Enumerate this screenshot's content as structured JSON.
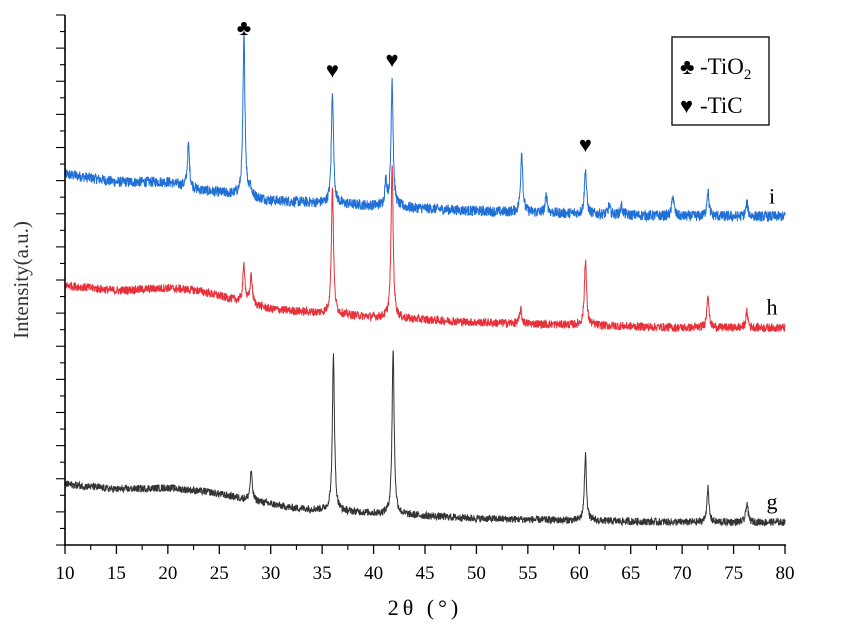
{
  "chart_data": {
    "type": "line",
    "title": "",
    "xlabel": "2θ (°)",
    "ylabel": "Intensity(a.u.)",
    "xlim": [
      10,
      80
    ],
    "ylim": [
      0,
      100
    ],
    "xticks": [
      10,
      15,
      20,
      25,
      30,
      35,
      40,
      45,
      50,
      55,
      60,
      65,
      70,
      75,
      80
    ],
    "grid": false,
    "legend": {
      "placement": "top-right",
      "entries": [
        {
          "symbol": "♣",
          "text": "-TiO",
          "sub": "2"
        },
        {
          "symbol": "♥",
          "text": "-TiC",
          "sub": ""
        }
      ]
    },
    "annotations": [
      {
        "symbol": "♣",
        "x": 27.4,
        "y": 96
      },
      {
        "symbol": "♥",
        "x": 36.0,
        "y": 88
      },
      {
        "symbol": "♥",
        "x": 41.8,
        "y": 90
      },
      {
        "symbol": "♥",
        "x": 60.6,
        "y": 74
      }
    ],
    "series": [
      {
        "name": "i",
        "color": "#1f6fd6",
        "noise": 1.0,
        "baseline": [
          [
            10,
            70
          ],
          [
            15,
            68.5
          ],
          [
            20,
            68.5
          ],
          [
            23,
            67
          ],
          [
            27,
            66
          ],
          [
            30,
            65
          ],
          [
            40,
            64
          ],
          [
            50,
            63
          ],
          [
            60,
            62.5
          ],
          [
            70,
            62
          ],
          [
            80,
            62
          ]
        ],
        "peaks": [
          [
            22.0,
            75.5
          ],
          [
            27.4,
            96
          ],
          [
            28.0,
            67.5
          ],
          [
            36.0,
            86
          ],
          [
            41.2,
            68.5
          ],
          [
            41.8,
            88
          ],
          [
            44.0,
            63.5
          ],
          [
            54.4,
            74.5
          ],
          [
            56.8,
            66
          ],
          [
            60.6,
            71
          ],
          [
            62.9,
            64
          ],
          [
            64.1,
            64
          ],
          [
            69.1,
            66
          ],
          [
            72.5,
            67
          ],
          [
            76.3,
            64.5
          ]
        ]
      },
      {
        "name": "h",
        "color": "#e8303a",
        "noise": 0.8,
        "baseline": [
          [
            10,
            49
          ],
          [
            15,
            48
          ],
          [
            20,
            48.5
          ],
          [
            23,
            48
          ],
          [
            27,
            46
          ],
          [
            30,
            44.5
          ],
          [
            40,
            43
          ],
          [
            50,
            42
          ],
          [
            60,
            41.5
          ],
          [
            70,
            41
          ],
          [
            80,
            41
          ]
        ],
        "peaks": [
          [
            27.4,
            53
          ],
          [
            28.1,
            51
          ],
          [
            36.0,
            68
          ],
          [
            41.8,
            72
          ],
          [
            54.3,
            44.5
          ],
          [
            60.6,
            54
          ],
          [
            72.5,
            47.5
          ],
          [
            76.3,
            44
          ]
        ]
      },
      {
        "name": "g",
        "color": "#333333",
        "noise": 0.7,
        "baseline": [
          [
            10,
            11.5
          ],
          [
            15,
            10.5
          ],
          [
            20,
            10.8
          ],
          [
            24,
            10
          ],
          [
            28,
            8.5
          ],
          [
            32,
            7
          ],
          [
            40,
            6
          ],
          [
            50,
            5
          ],
          [
            60,
            4.6
          ],
          [
            70,
            4.3
          ],
          [
            80,
            4.3
          ]
        ],
        "peaks": [
          [
            28.1,
            14
          ],
          [
            36.1,
            36
          ],
          [
            41.9,
            37
          ],
          [
            60.6,
            17
          ],
          [
            72.5,
            10.8
          ],
          [
            76.3,
            8
          ]
        ]
      }
    ]
  }
}
